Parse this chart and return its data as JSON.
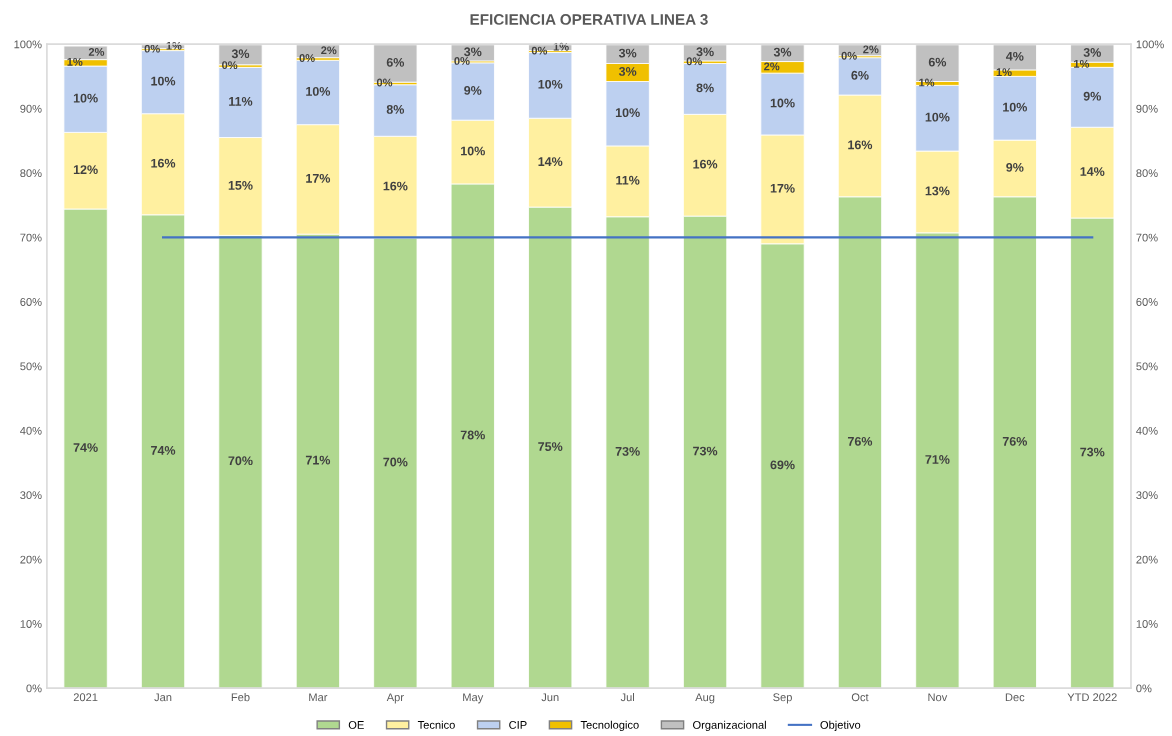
{
  "chart_data": {
    "type": "bar",
    "title": "EFICIENCIA OPERATIVA LINEA 3",
    "stacked": true,
    "grid": false,
    "legend": "bottom",
    "categories": [
      "2021",
      "Jan",
      "Feb",
      "Mar",
      "Apr",
      "May",
      "Jun",
      "Jul",
      "Aug",
      "Sep",
      "Oct",
      "Nov",
      "Dec",
      "YTD 2022"
    ],
    "ylim": [
      0,
      100
    ],
    "yticks": [
      {
        "value": 0,
        "label": "0%"
      },
      {
        "value": 10,
        "label": "10%"
      },
      {
        "value": 20,
        "label": "20%"
      },
      {
        "value": 30,
        "label": "30%"
      },
      {
        "value": 40,
        "label": "40%"
      },
      {
        "value": 50,
        "label": "50%"
      },
      {
        "value": 60,
        "label": "60%"
      },
      {
        "value": 70,
        "label": "70%"
      },
      {
        "value": 80,
        "label": "80%"
      },
      {
        "value": 90,
        "label": "90%"
      },
      {
        "value": 100,
        "label": "100%"
      }
    ],
    "y2lim": [
      0,
      100
    ],
    "y2ticks": [
      {
        "value": 0,
        "label": "0%"
      },
      {
        "value": 10,
        "label": "10%"
      },
      {
        "value": 20,
        "label": "20%"
      },
      {
        "value": 30,
        "label": "30%"
      },
      {
        "value": 40,
        "label": "40%"
      },
      {
        "value": 50,
        "label": "50%"
      },
      {
        "value": 60,
        "label": "60%"
      },
      {
        "value": 70,
        "label": "70%"
      },
      {
        "value": 80,
        "label": "80%"
      },
      {
        "value": 90,
        "label": "90%"
      },
      {
        "value": 100,
        "label": "100%"
      }
    ],
    "series": [
      {
        "name": "OE",
        "color": "#b0d890",
        "values": [
          74.4,
          73.5,
          70.3,
          70.5,
          69.9,
          78.3,
          74.7,
          73.2,
          73.3,
          69.0,
          76.3,
          70.7,
          76.3,
          73.0
        ],
        "value_labels": [
          "74%",
          "74%",
          "70%",
          "71%",
          "70%",
          "78%",
          "75%",
          "73%",
          "73%",
          "69%",
          "76%",
          "71%",
          "76%",
          "73%"
        ]
      },
      {
        "name": "Tecnico",
        "color": "#fff0a0",
        "values": [
          11.9,
          15.7,
          15.2,
          17.0,
          15.8,
          9.9,
          13.8,
          11.0,
          15.8,
          16.9,
          15.8,
          12.7,
          8.8,
          14.1
        ],
        "value_labels": [
          "12%",
          "16%",
          "15%",
          "17%",
          "16%",
          "10%",
          "14%",
          "11%",
          "16%",
          "17%",
          "16%",
          "13%",
          "9%",
          "14%"
        ]
      },
      {
        "name": "CIP",
        "color": "#bdd0f0",
        "values": [
          10.3,
          9.8,
          10.9,
          10.0,
          8.0,
          8.9,
          10.2,
          10.0,
          7.9,
          9.6,
          5.8,
          10.2,
          9.9,
          9.3
        ],
        "value_labels": [
          "10%",
          "10%",
          "11%",
          "10%",
          "8%",
          "9%",
          "10%",
          "10%",
          "8%",
          "10%",
          "6%",
          "10%",
          "10%",
          "9%"
        ]
      },
      {
        "name": "Tecnologico",
        "color": "#f0c000",
        "values": [
          1.0,
          0.3,
          0.4,
          0.4,
          0.4,
          0.3,
          0.3,
          2.8,
          0.4,
          1.8,
          0.3,
          0.6,
          1.0,
          0.8
        ],
        "value_labels": [
          "1%",
          "0%",
          "0%",
          "0%",
          "0%",
          "0%",
          "0%",
          "3%",
          "0%",
          "2%",
          "0%",
          "1%",
          "1%",
          "1%"
        ]
      },
      {
        "name": "Organizacional",
        "color": "#c0c0c0",
        "values": [
          2.1,
          0.6,
          3.1,
          2.0,
          5.8,
          2.5,
          0.9,
          2.9,
          2.5,
          2.6,
          1.7,
          5.7,
          3.9,
          2.7
        ],
        "value_labels": [
          "2%",
          "1%",
          "3%",
          "2%",
          "6%",
          "3%",
          "1%",
          "3%",
          "3%",
          "3%",
          "2%",
          "6%",
          "4%",
          "3%"
        ]
      },
      {
        "name": "Objetivo",
        "type": "line",
        "color": "#4472c4",
        "values": [
          null,
          70,
          70,
          70,
          70,
          70,
          70,
          70,
          70,
          70,
          70,
          70,
          70,
          70
        ]
      }
    ]
  }
}
